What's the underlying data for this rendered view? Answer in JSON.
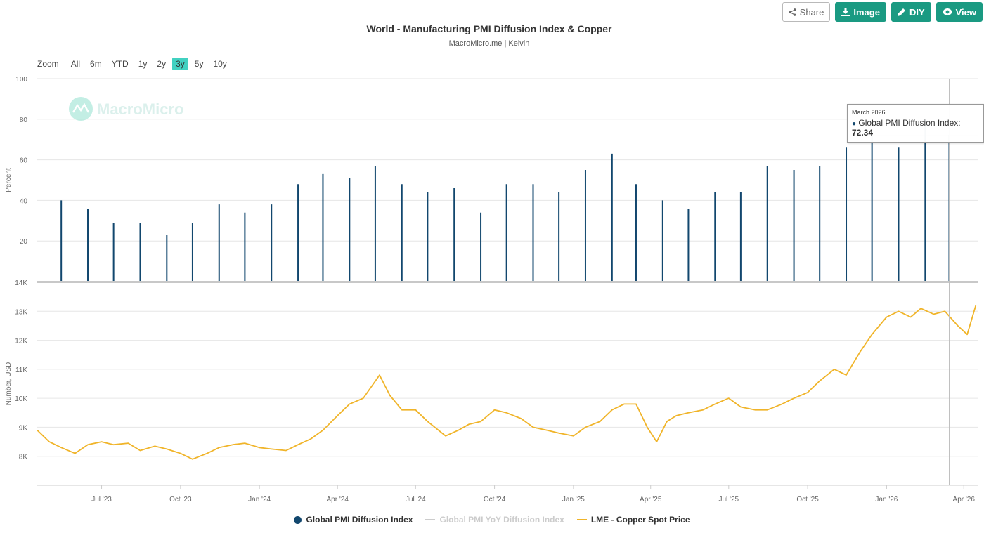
{
  "header": {
    "title": "World - Manufacturing PMI Diffusion Index & Copper",
    "subtitle": "MacroMicro.me | Kelvin"
  },
  "toolbar": {
    "share_label": "Share",
    "image_label": "Image",
    "diy_label": "DIY",
    "view_label": "View"
  },
  "zoom": {
    "label": "Zoom",
    "buttons": [
      "All",
      "6m",
      "YTD",
      "1y",
      "2y",
      "3y",
      "5y",
      "10y"
    ],
    "active": "3y"
  },
  "watermark": "MacroMicro",
  "tooltip": {
    "date": "March 2026",
    "series": "Global PMI Diffusion Index",
    "value": "72.34"
  },
  "legend": [
    {
      "label": "Global PMI Diffusion Index",
      "color": "#12476e",
      "kind": "dot",
      "hidden": false
    },
    {
      "label": "Global PMI YoY Diffusion Index",
      "color": "#cccccc",
      "kind": "line",
      "hidden": true
    },
    {
      "label": "LME - Copper Spot Price",
      "color": "#f0b429",
      "kind": "line",
      "hidden": false
    }
  ],
  "chart_data": [
    {
      "type": "bar",
      "ylabel": "Percent",
      "ylim": [
        0,
        100
      ],
      "yticks": [
        20,
        40,
        60,
        80,
        100
      ],
      "series": [
        {
          "name": "Global PMI Diffusion Index",
          "color": "#12476e",
          "x": [
            "2023-05",
            "2023-06",
            "2023-07",
            "2023-08",
            "2023-09",
            "2023-10",
            "2023-11",
            "2023-12",
            "2024-01",
            "2024-02",
            "2024-03",
            "2024-04",
            "2024-05",
            "2024-06",
            "2024-07",
            "2024-08",
            "2024-09",
            "2024-10",
            "2024-11",
            "2024-12",
            "2025-01",
            "2025-02",
            "2025-03",
            "2025-04",
            "2025-05",
            "2025-06",
            "2025-07",
            "2025-08",
            "2025-09",
            "2025-10",
            "2025-11",
            "2025-12",
            "2026-01",
            "2026-02",
            "2026-03"
          ],
          "values": [
            40,
            36,
            29,
            29,
            23,
            29,
            38,
            34,
            38,
            48,
            53,
            51,
            57,
            48,
            44,
            46,
            34,
            48,
            48,
            44,
            55,
            63,
            48,
            40,
            36,
            44,
            44,
            57,
            55,
            57,
            66,
            75,
            66,
            80,
            72.34
          ]
        }
      ]
    },
    {
      "type": "line",
      "ylabel": "Number, USD",
      "ylim": [
        7000,
        14000
      ],
      "yticks": [
        "8K",
        "9K",
        "10K",
        "11K",
        "12K",
        "13K",
        "14K"
      ],
      "xticks": [
        "Jul '23",
        "Oct '23",
        "Jan '24",
        "Apr '24",
        "Jul '24",
        "Oct '24",
        "Jan '25",
        "Apr '25",
        "Jul '25",
        "Oct '25",
        "Jan '26",
        "Apr '26"
      ],
      "series": [
        {
          "name": "LME - Copper Spot Price",
          "color": "#f0b429",
          "x": [
            "2023-04-17",
            "2023-05-01",
            "2023-05-15",
            "2023-05-31",
            "2023-06-15",
            "2023-07-01",
            "2023-07-15",
            "2023-08-01",
            "2023-08-15",
            "2023-09-01",
            "2023-09-15",
            "2023-10-01",
            "2023-10-15",
            "2023-11-01",
            "2023-11-15",
            "2023-12-01",
            "2023-12-15",
            "2024-01-01",
            "2024-01-15",
            "2024-02-01",
            "2024-02-15",
            "2024-03-01",
            "2024-03-15",
            "2024-04-01",
            "2024-04-15",
            "2024-05-01",
            "2024-05-20",
            "2024-06-01",
            "2024-06-15",
            "2024-07-01",
            "2024-07-15",
            "2024-08-05",
            "2024-08-20",
            "2024-09-01",
            "2024-09-15",
            "2024-10-01",
            "2024-10-15",
            "2024-11-01",
            "2024-11-15",
            "2024-12-01",
            "2024-12-15",
            "2025-01-01",
            "2025-01-15",
            "2025-02-01",
            "2025-02-15",
            "2025-03-01",
            "2025-03-15",
            "2025-03-28",
            "2025-04-08",
            "2025-04-20",
            "2025-05-01",
            "2025-05-15",
            "2025-06-01",
            "2025-06-15",
            "2025-07-01",
            "2025-07-15",
            "2025-08-01",
            "2025-08-15",
            "2025-09-01",
            "2025-09-15",
            "2025-10-01",
            "2025-10-15",
            "2025-11-01",
            "2025-11-15",
            "2025-12-01",
            "2025-12-15",
            "2026-01-01",
            "2026-01-15",
            "2026-01-29",
            "2026-02-10",
            "2026-02-25",
            "2026-03-10",
            "2026-03-25",
            "2026-04-05",
            "2026-04-15"
          ],
          "values": [
            8900,
            8500,
            8300,
            8100,
            8400,
            8500,
            8400,
            8450,
            8200,
            8350,
            8250,
            8100,
            7900,
            8100,
            8300,
            8400,
            8450,
            8300,
            8250,
            8200,
            8400,
            8600,
            8900,
            9400,
            9800,
            10000,
            10800,
            10100,
            9600,
            9600,
            9200,
            8700,
            8900,
            9100,
            9200,
            9600,
            9500,
            9300,
            9000,
            8900,
            8800,
            8700,
            9000,
            9200,
            9600,
            9800,
            9800,
            9000,
            8500,
            9200,
            9400,
            9500,
            9600,
            9800,
            10000,
            9700,
            9600,
            9600,
            9800,
            10000,
            10200,
            10600,
            11000,
            10800,
            11600,
            12200,
            12800,
            13000,
            12800,
            13100,
            12900,
            13000,
            12500,
            12200,
            13200
          ]
        }
      ]
    }
  ]
}
